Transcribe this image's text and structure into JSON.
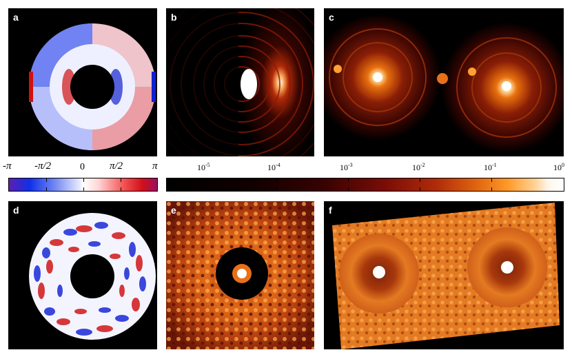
{
  "panels": {
    "a": "a",
    "b": "b",
    "c": "c",
    "d": "d",
    "e": "e",
    "f": "f"
  },
  "phase_colorbar": {
    "labels": [
      "-π",
      "-π/2",
      "0",
      "π/2",
      "π"
    ],
    "colors": [
      "#5c1fb0",
      "#1030e8",
      "#ffffff",
      "#f25050",
      "#9a1060"
    ]
  },
  "intensity_colorbar": {
    "labels": [
      {
        "base": "10",
        "exp": "-5"
      },
      {
        "base": "10",
        "exp": "-4"
      },
      {
        "base": "10",
        "exp": "-3"
      },
      {
        "base": "10",
        "exp": "-2"
      },
      {
        "base": "10",
        "exp": "-1"
      },
      {
        "base": "10",
        "exp": "0"
      }
    ],
    "colors": [
      "#000000",
      "#7a0d06",
      "#e0640f",
      "#ffd49a",
      "#ffffff"
    ]
  }
}
